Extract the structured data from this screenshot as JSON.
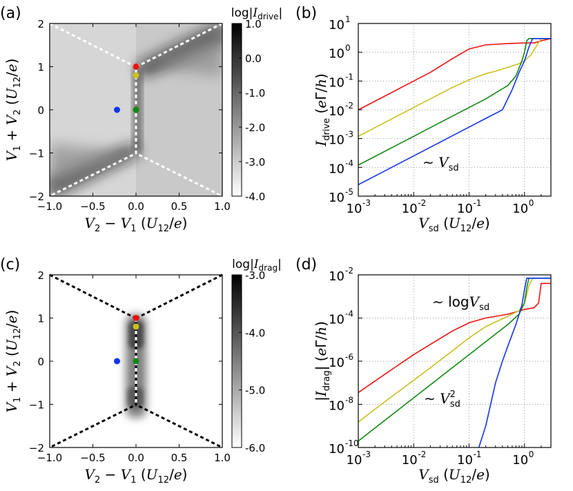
{
  "chart_data": [
    {
      "panel": "(a)",
      "type": "heatmap",
      "colorbar_title": "log|I_drive|",
      "colorbar_ticks": [
        "1.0",
        "0.0",
        "-1.0",
        "-2.0",
        "-3.0",
        "-4.0"
      ],
      "colorbar_range": [
        -4.0,
        1.0
      ],
      "xlabel": "V₂ − V₁ (U₁₂/e)",
      "ylabel": "V₁ + V₂ (U₁₂/e)",
      "xlim": [
        -1.0,
        1.0
      ],
      "ylim": [
        -2,
        2
      ],
      "xticks": [
        "−1.0",
        "−0.5",
        "0.0",
        "0.5",
        "1.0"
      ],
      "yticks": [
        "2",
        "1",
        "0",
        "−1",
        "−2"
      ],
      "boundary_color": "#ffffff",
      "points": [
        {
          "name": "red",
          "x": 0.0,
          "y": 1.0,
          "color": "#ee1111"
        },
        {
          "name": "yellow",
          "x": 0.0,
          "y": 0.8,
          "color": "#c8c020"
        },
        {
          "name": "green",
          "x": 0.0,
          "y": 0.0,
          "color": "#118811"
        },
        {
          "name": "blue",
          "x": -0.22,
          "y": 0.0,
          "color": "#1133ee"
        }
      ]
    },
    {
      "panel": "(b)",
      "type": "line",
      "xscale": "log",
      "yscale": "log",
      "xlim": [
        0.001,
        3
      ],
      "ylim": [
        1e-05,
        10
      ],
      "xlabel": "V_sd (U₁₂/e)",
      "ylabel": "I_drive (eΓ/h)",
      "annotation": "∼ V_sd",
      "xticks": [
        "10",
        "10",
        "10",
        "10"
      ],
      "xtick_exps": [
        "-3",
        "-2",
        "-1",
        "0"
      ],
      "yticks": [
        "10",
        "10",
        "10",
        "10",
        "10",
        "10",
        "10"
      ],
      "ytick_exps": [
        "1",
        "0",
        "-1",
        "-2",
        "-3",
        "-4",
        "-5"
      ],
      "series": [
        {
          "name": "red",
          "color": "#ee1111",
          "x": [
            0.001,
            0.002,
            0.005,
            0.01,
            0.02,
            0.05,
            0.1,
            0.2,
            0.5,
            1.0,
            1.5,
            2.0,
            3.0
          ],
          "y": [
            0.01,
            0.02,
            0.05,
            0.1,
            0.2,
            0.6,
            1.3,
            1.8,
            2.0,
            2.1,
            2.1,
            2.5,
            3.0
          ]
        },
        {
          "name": "yellow",
          "color": "#c8c020",
          "x": [
            0.001,
            0.002,
            0.005,
            0.01,
            0.02,
            0.05,
            0.1,
            0.2,
            0.3,
            0.5,
            0.8,
            1.0,
            1.3,
            1.6,
            2.0,
            3.0
          ],
          "y": [
            0.0012,
            0.0024,
            0.006,
            0.012,
            0.024,
            0.06,
            0.11,
            0.18,
            0.22,
            0.3,
            0.4,
            0.5,
            0.8,
            1.5,
            3.0,
            3.0
          ]
        },
        {
          "name": "green",
          "color": "#118811",
          "x": [
            0.001,
            0.002,
            0.005,
            0.01,
            0.02,
            0.05,
            0.1,
            0.2,
            0.5,
            0.7,
            0.9,
            1.0,
            1.1,
            1.2,
            3.0
          ],
          "y": [
            0.00012,
            0.00024,
            0.0006,
            0.0012,
            0.0024,
            0.006,
            0.012,
            0.024,
            0.07,
            0.15,
            0.5,
            1.0,
            2.5,
            3.0,
            3.0
          ]
        },
        {
          "name": "blue",
          "color": "#1133ee",
          "x": [
            0.001,
            0.002,
            0.005,
            0.01,
            0.02,
            0.05,
            0.1,
            0.2,
            0.3,
            0.4,
            0.6,
            0.8,
            1.0,
            1.2,
            1.4,
            3.0
          ],
          "y": [
            2.5e-05,
            5e-05,
            0.000125,
            0.00025,
            0.0005,
            0.00125,
            0.0025,
            0.005,
            0.0075,
            0.01,
            0.05,
            0.2,
            0.5,
            1.5,
            3.0,
            3.0
          ]
        }
      ]
    },
    {
      "panel": "(c)",
      "type": "heatmap",
      "colorbar_title": "log|I_drag|",
      "colorbar_ticks": [
        "-3.0",
        "-4.0",
        "-5.0",
        "-6.0"
      ],
      "colorbar_range": [
        -6.0,
        -3.0
      ],
      "xlabel": "V₂ − V₁ (U₁₂/e)",
      "ylabel": "V₁ + V₂ (U₁₂/e)",
      "xlim": [
        -1.0,
        1.0
      ],
      "ylim": [
        -2,
        2
      ],
      "xticks": [
        "−1.0",
        "−0.5",
        "0.0",
        "0.5",
        "1.0"
      ],
      "yticks": [
        "2",
        "1",
        "0",
        "−1",
        "−2"
      ],
      "boundary_color": "#000000",
      "points": [
        {
          "name": "red",
          "x": 0.0,
          "y": 1.0,
          "color": "#ee1111"
        },
        {
          "name": "yellow",
          "x": 0.0,
          "y": 0.8,
          "color": "#c8c020"
        },
        {
          "name": "green",
          "x": 0.0,
          "y": 0.0,
          "color": "#118811"
        },
        {
          "name": "blue",
          "x": -0.22,
          "y": 0.0,
          "color": "#1133ee"
        }
      ]
    },
    {
      "panel": "(d)",
      "type": "line",
      "xscale": "log",
      "yscale": "log",
      "xlim": [
        0.001,
        3
      ],
      "ylim": [
        1e-10,
        0.01
      ],
      "xlabel": "V_sd (U₁₂/e)",
      "ylabel": "|I_drag| (eΓ/h)",
      "annotations": [
        "∼ logV_sd",
        "∼ V_sd²"
      ],
      "xticks": [
        "10",
        "10",
        "10",
        "10"
      ],
      "xtick_exps": [
        "-3",
        "-2",
        "-1",
        "0"
      ],
      "yticks": [
        "10",
        "10",
        "10",
        "10",
        "10"
      ],
      "ytick_exps": [
        "-2",
        "-4",
        "-6",
        "-8",
        "-10"
      ],
      "series": [
        {
          "name": "red",
          "color": "#ee1111",
          "x": [
            0.001,
            0.002,
            0.005,
            0.01,
            0.02,
            0.05,
            0.1,
            0.2,
            0.5,
            1.0,
            1.5,
            1.8,
            2.0,
            3.0
          ],
          "y": [
            3.5e-08,
            1.2e-07,
            6e-07,
            2e-06,
            6e-06,
            2.5e-05,
            6e-05,
            0.0001,
            0.00015,
            0.00025,
            0.0003,
            0.0005,
            0.004,
            0.004
          ]
        },
        {
          "name": "yellow",
          "color": "#c8c020",
          "x": [
            0.001,
            0.002,
            0.005,
            0.01,
            0.02,
            0.05,
            0.1,
            0.2,
            0.5,
            0.8,
            1.0,
            1.2,
            1.4,
            3.0
          ],
          "y": [
            1.5e-09,
            6e-09,
            3.5e-08,
            1.3e-07,
            5e-07,
            3e-06,
            1.2e-05,
            4e-05,
            0.00012,
            0.00022,
            0.0005,
            0.003,
            0.007,
            0.007
          ]
        },
        {
          "name": "green",
          "color": "#118811",
          "x": [
            0.001,
            0.002,
            0.005,
            0.01,
            0.02,
            0.05,
            0.1,
            0.2,
            0.5,
            0.8,
            1.0,
            1.1,
            1.2,
            3.0
          ],
          "y": [
            2e-10,
            8e-10,
            5e-09,
            2e-08,
            8e-08,
            5e-07,
            2e-06,
            8e-06,
            5e-05,
            0.00015,
            0.0005,
            0.0025,
            0.007,
            0.007
          ]
        },
        {
          "name": "blue",
          "color": "#1133ee",
          "x": [
            0.15,
            0.2,
            0.3,
            0.4,
            0.5,
            0.7,
            0.9,
            1.0,
            1.1,
            3.0
          ],
          "y": [
            1e-10,
            1e-09,
            1e-07,
            1e-06,
            5e-06,
            5e-05,
            0.0004,
            0.002,
            0.007,
            0.007
          ]
        }
      ]
    }
  ]
}
